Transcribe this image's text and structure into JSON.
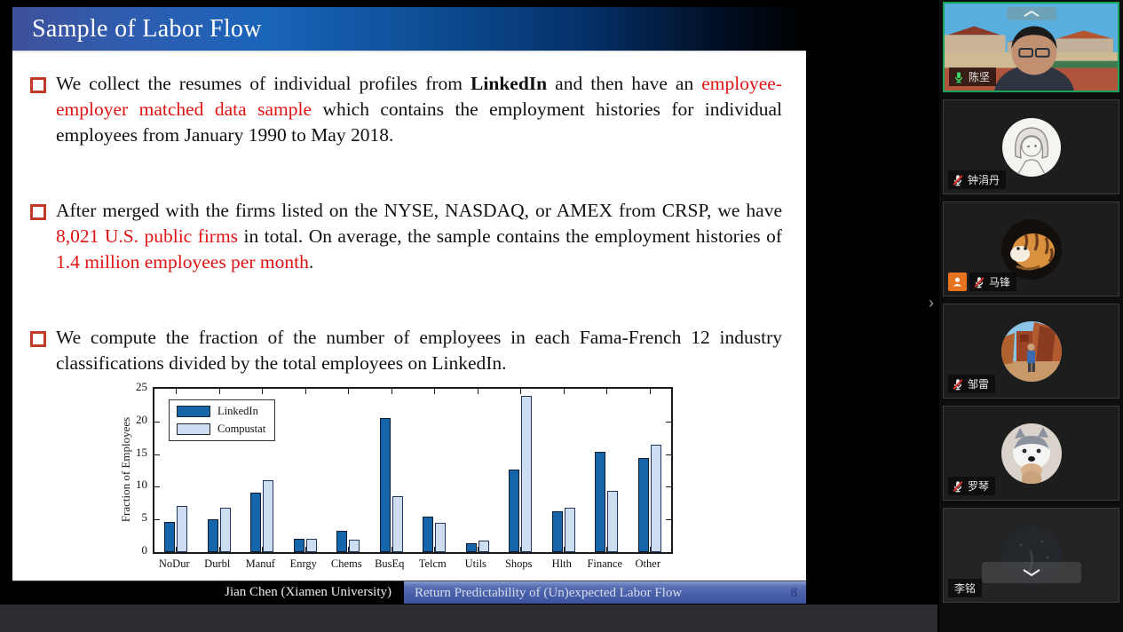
{
  "icons": {
    "collapse_chevron": "›"
  },
  "slide": {
    "title": "Sample of Labor Flow",
    "bullets": [
      {
        "segments": [
          {
            "t": "We collect the resumes of individual profiles from ",
            "s": "n"
          },
          {
            "t": "LinkedIn",
            "s": "b"
          },
          {
            "t": " and then have an ",
            "s": "n"
          },
          {
            "t": "employee-employer matched data sample",
            "s": "r"
          },
          {
            "t": " which contains the employment histories for individual employees from January 1990 to May 2018.",
            "s": "n"
          }
        ]
      },
      {
        "segments": [
          {
            "t": "After merged with the firms listed on the NYSE, NASDAQ, or AMEX from CRSP, we have ",
            "s": "n"
          },
          {
            "t": "8,021 U.S. public firms",
            "s": "r"
          },
          {
            "t": " in total. On average, the sample contains the employment histories of ",
            "s": "n"
          },
          {
            "t": "1.4 million employees per month",
            "s": "r"
          },
          {
            "t": ".",
            "s": "n"
          }
        ]
      },
      {
        "segments": [
          {
            "t": "We compute the fraction of the number of employees in each Fama-French 12 industry classifications divided by the total employees on LinkedIn.",
            "s": "n"
          }
        ]
      }
    ],
    "footer": {
      "author": "Jian Chen (Xiamen University)",
      "deck_title": "Return Predictability of (Un)expected Labor Flow",
      "page": "8"
    }
  },
  "chart_data": {
    "type": "bar",
    "categories": [
      "NoDur",
      "Durbl",
      "Manuf",
      "Enrgy",
      "Chems",
      "BusEq",
      "Telcm",
      "Utils",
      "Shops",
      "Hlth",
      "Finance",
      "Other"
    ],
    "series": [
      {
        "name": "LinkedIn",
        "color": "#1565ab",
        "values": [
          4.6,
          5.0,
          9.1,
          2.1,
          3.3,
          20.5,
          5.5,
          1.4,
          12.7,
          6.3,
          15.4,
          14.4
        ]
      },
      {
        "name": "Compustat",
        "color": "#cdddf2",
        "values": [
          7.1,
          6.8,
          11.0,
          2.0,
          1.9,
          8.6,
          4.5,
          1.7,
          23.9,
          6.8,
          9.4,
          16.4
        ]
      }
    ],
    "title": "",
    "xlabel": "",
    "ylabel": "Fraction of Employees",
    "ylim": [
      0,
      25
    ],
    "yticks": [
      0,
      5,
      10,
      15,
      20,
      25
    ],
    "grid": false,
    "legend_position": "top-left"
  },
  "meeting": {
    "participants": [
      {
        "name": "陈坚",
        "mic": "on",
        "video": true,
        "active_speaker": true
      },
      {
        "name": "钟涓丹",
        "mic": "muted",
        "avatar": "sketch-girl"
      },
      {
        "name": "马锋",
        "mic": "muted",
        "avatar": "tiger",
        "badge": "host"
      },
      {
        "name": "邹雷",
        "mic": "muted",
        "avatar": "canyon-photo"
      },
      {
        "name": "罗琴",
        "mic": "muted",
        "avatar": "husky-photo"
      },
      {
        "name": "李铭",
        "mic": "none",
        "avatar": "dark"
      }
    ]
  }
}
